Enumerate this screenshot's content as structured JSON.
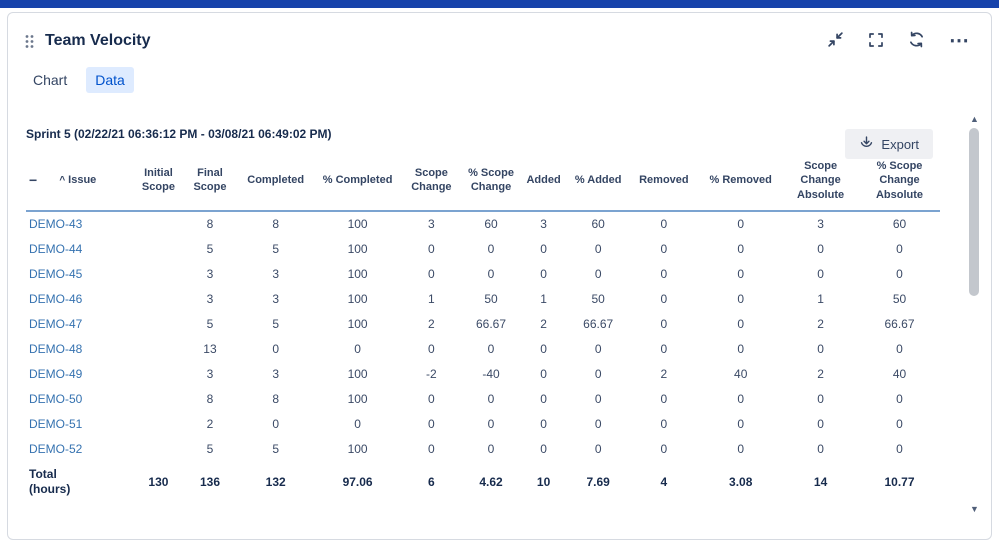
{
  "colors": {
    "top_bar": "#1743ab",
    "accent_blue": "#0052cc",
    "tab_active_bg": "#deebff",
    "link": "#3572b0",
    "header_rule": "#7ba3d0"
  },
  "icons": {
    "drag_handle": "drag-handle-dots",
    "minimize": "collapse-arrows",
    "fullscreen": "corner-brackets",
    "refresh": "circular-arrows",
    "more": "⋯",
    "export": "download-arrow",
    "collapse_all": "−",
    "sort_asc": "^",
    "scroll_up": "▲",
    "scroll_down": "▼"
  },
  "widget": {
    "title": "Team Velocity",
    "tabs": [
      {
        "label": "Chart",
        "active": false
      },
      {
        "label": "Data",
        "active": true
      }
    ],
    "export_label": "Export",
    "sprint_label": "Sprint 5 (02/22/21 06:36:12 PM - 03/08/21 06:49:02 PM)"
  },
  "table": {
    "columns": [
      "Issue",
      "Initial Scope",
      "Final Scope",
      "Completed",
      "% Completed",
      "Scope Change",
      "% Scope Change",
      "Added",
      "% Added",
      "Removed",
      "% Removed",
      "Scope Change Absolute",
      "% Scope Change Absolute"
    ],
    "rows": [
      {
        "issue": "DEMO-43",
        "values": [
          "",
          "8",
          "8",
          "100",
          "3",
          "60",
          "3",
          "60",
          "0",
          "0",
          "3",
          "60"
        ]
      },
      {
        "issue": "DEMO-44",
        "values": [
          "",
          "5",
          "5",
          "100",
          "0",
          "0",
          "0",
          "0",
          "0",
          "0",
          "0",
          "0"
        ]
      },
      {
        "issue": "DEMO-45",
        "values": [
          "",
          "3",
          "3",
          "100",
          "0",
          "0",
          "0",
          "0",
          "0",
          "0",
          "0",
          "0"
        ]
      },
      {
        "issue": "DEMO-46",
        "values": [
          "",
          "3",
          "3",
          "100",
          "1",
          "50",
          "1",
          "50",
          "0",
          "0",
          "1",
          "50"
        ]
      },
      {
        "issue": "DEMO-47",
        "values": [
          "",
          "5",
          "5",
          "100",
          "2",
          "66.67",
          "2",
          "66.67",
          "0",
          "0",
          "2",
          "66.67"
        ]
      },
      {
        "issue": "DEMO-48",
        "values": [
          "",
          "13",
          "0",
          "0",
          "0",
          "0",
          "0",
          "0",
          "0",
          "0",
          "0",
          "0"
        ]
      },
      {
        "issue": "DEMO-49",
        "values": [
          "",
          "3",
          "3",
          "100",
          "-2",
          "-40",
          "0",
          "0",
          "2",
          "40",
          "2",
          "40"
        ]
      },
      {
        "issue": "DEMO-50",
        "values": [
          "",
          "8",
          "8",
          "100",
          "0",
          "0",
          "0",
          "0",
          "0",
          "0",
          "0",
          "0"
        ]
      },
      {
        "issue": "DEMO-51",
        "values": [
          "",
          "2",
          "0",
          "0",
          "0",
          "0",
          "0",
          "0",
          "0",
          "0",
          "0",
          "0"
        ]
      },
      {
        "issue": "DEMO-52",
        "values": [
          "",
          "5",
          "5",
          "100",
          "0",
          "0",
          "0",
          "0",
          "0",
          "0",
          "0",
          "0"
        ]
      }
    ],
    "total_row": {
      "label": "Total\n(hours)",
      "values": [
        "130",
        "136",
        "132",
        "97.06",
        "6",
        "4.62",
        "10",
        "7.69",
        "4",
        "3.08",
        "14",
        "10.77"
      ]
    }
  }
}
